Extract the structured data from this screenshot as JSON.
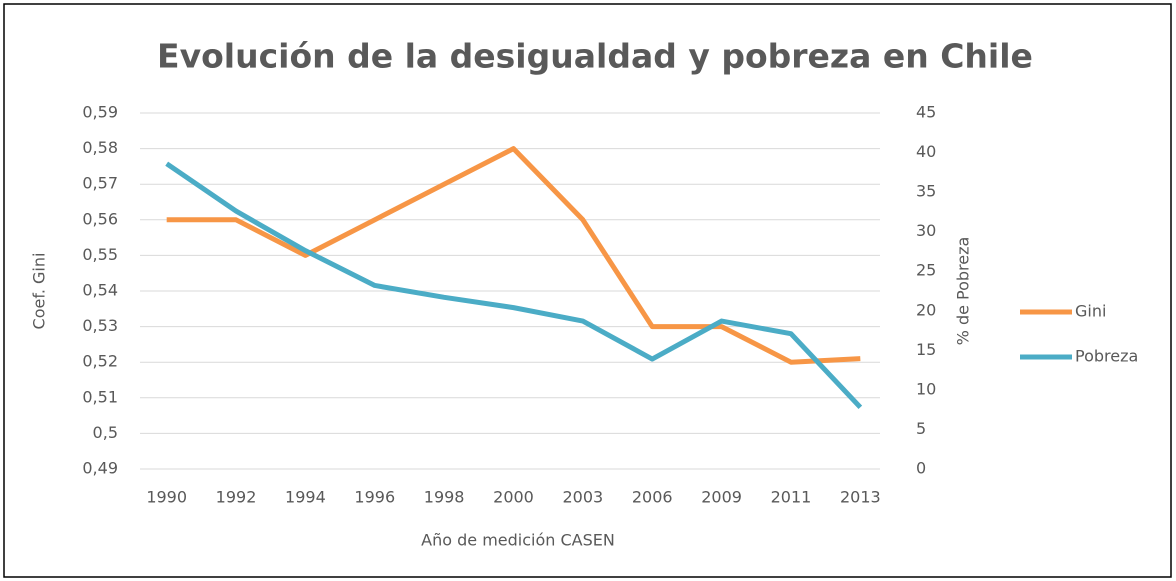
{
  "chart_data": {
    "type": "line",
    "title": "Evolución de la desigualdad y pobreza en Chile",
    "xlabel": "Año de medición CASEN",
    "ylabel": "Coef. Gini",
    "y2label": "% de Pobreza",
    "categories": [
      "1990",
      "1992",
      "1994",
      "1996",
      "1998",
      "2000",
      "2003",
      "2006",
      "2009",
      "2011",
      "2013"
    ],
    "series": [
      {
        "name": "Gini",
        "color": "#f79646",
        "values": [
          0.56,
          0.56,
          0.55,
          0.56,
          0.57,
          0.58,
          0.56,
          0.53,
          0.53,
          0.52,
          0.521
        ]
      },
      {
        "name": "Pobreza",
        "color": "#4bacc6",
        "axis": "y2",
        "values": [
          38.6,
          32.6,
          27.6,
          23.2,
          21.7,
          20.4,
          18.7,
          13.9,
          18.7,
          17.1,
          7.8
        ]
      }
    ],
    "ylim": [
      0.49,
      0.59
    ],
    "yticks": [
      {
        "value": 0.49,
        "label": "0,49"
      },
      {
        "value": 0.5,
        "label": "0,5"
      },
      {
        "value": 0.51,
        "label": "0,51"
      },
      {
        "value": 0.52,
        "label": "0,52"
      },
      {
        "value": 0.53,
        "label": "0,53"
      },
      {
        "value": 0.54,
        "label": "0,54"
      },
      {
        "value": 0.55,
        "label": "0,55"
      },
      {
        "value": 0.56,
        "label": "0,56"
      },
      {
        "value": 0.57,
        "label": "0,57"
      },
      {
        "value": 0.58,
        "label": "0,58"
      },
      {
        "value": 0.59,
        "label": "0,59"
      }
    ],
    "y2lim": [
      0,
      45
    ],
    "y2ticks": [
      0,
      5,
      10,
      15,
      20,
      25,
      30,
      35,
      40,
      45
    ],
    "grid": true,
    "legend": "right"
  }
}
